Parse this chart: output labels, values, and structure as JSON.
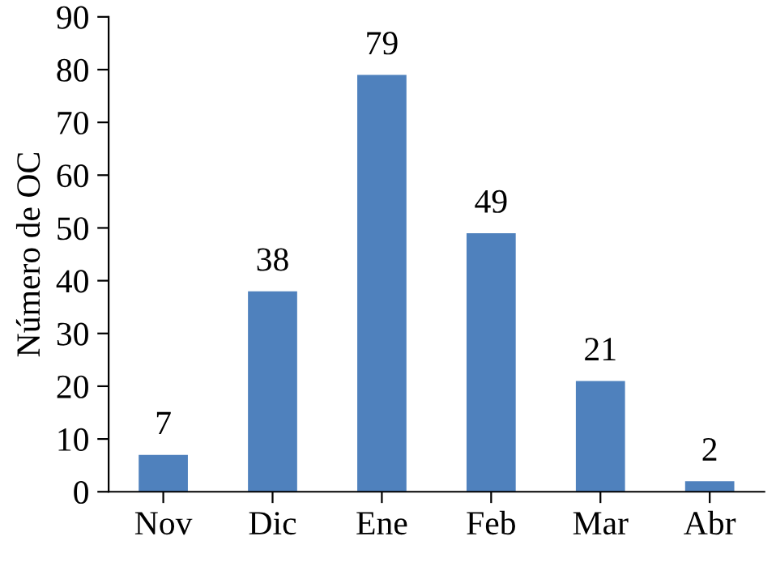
{
  "chart_data": {
    "type": "bar",
    "ylabel": "Número de OC",
    "categories": [
      "Nov",
      "Dic",
      "Ene",
      "Feb",
      "Mar",
      "Abr"
    ],
    "values": [
      7,
      38,
      79,
      49,
      21,
      2
    ],
    "color": "#4f81bd",
    "ylim": [
      0,
      90
    ],
    "yticks": [
      0,
      10,
      20,
      30,
      40,
      50,
      60,
      70,
      80,
      90
    ],
    "grid": false,
    "data_labels": true
  }
}
